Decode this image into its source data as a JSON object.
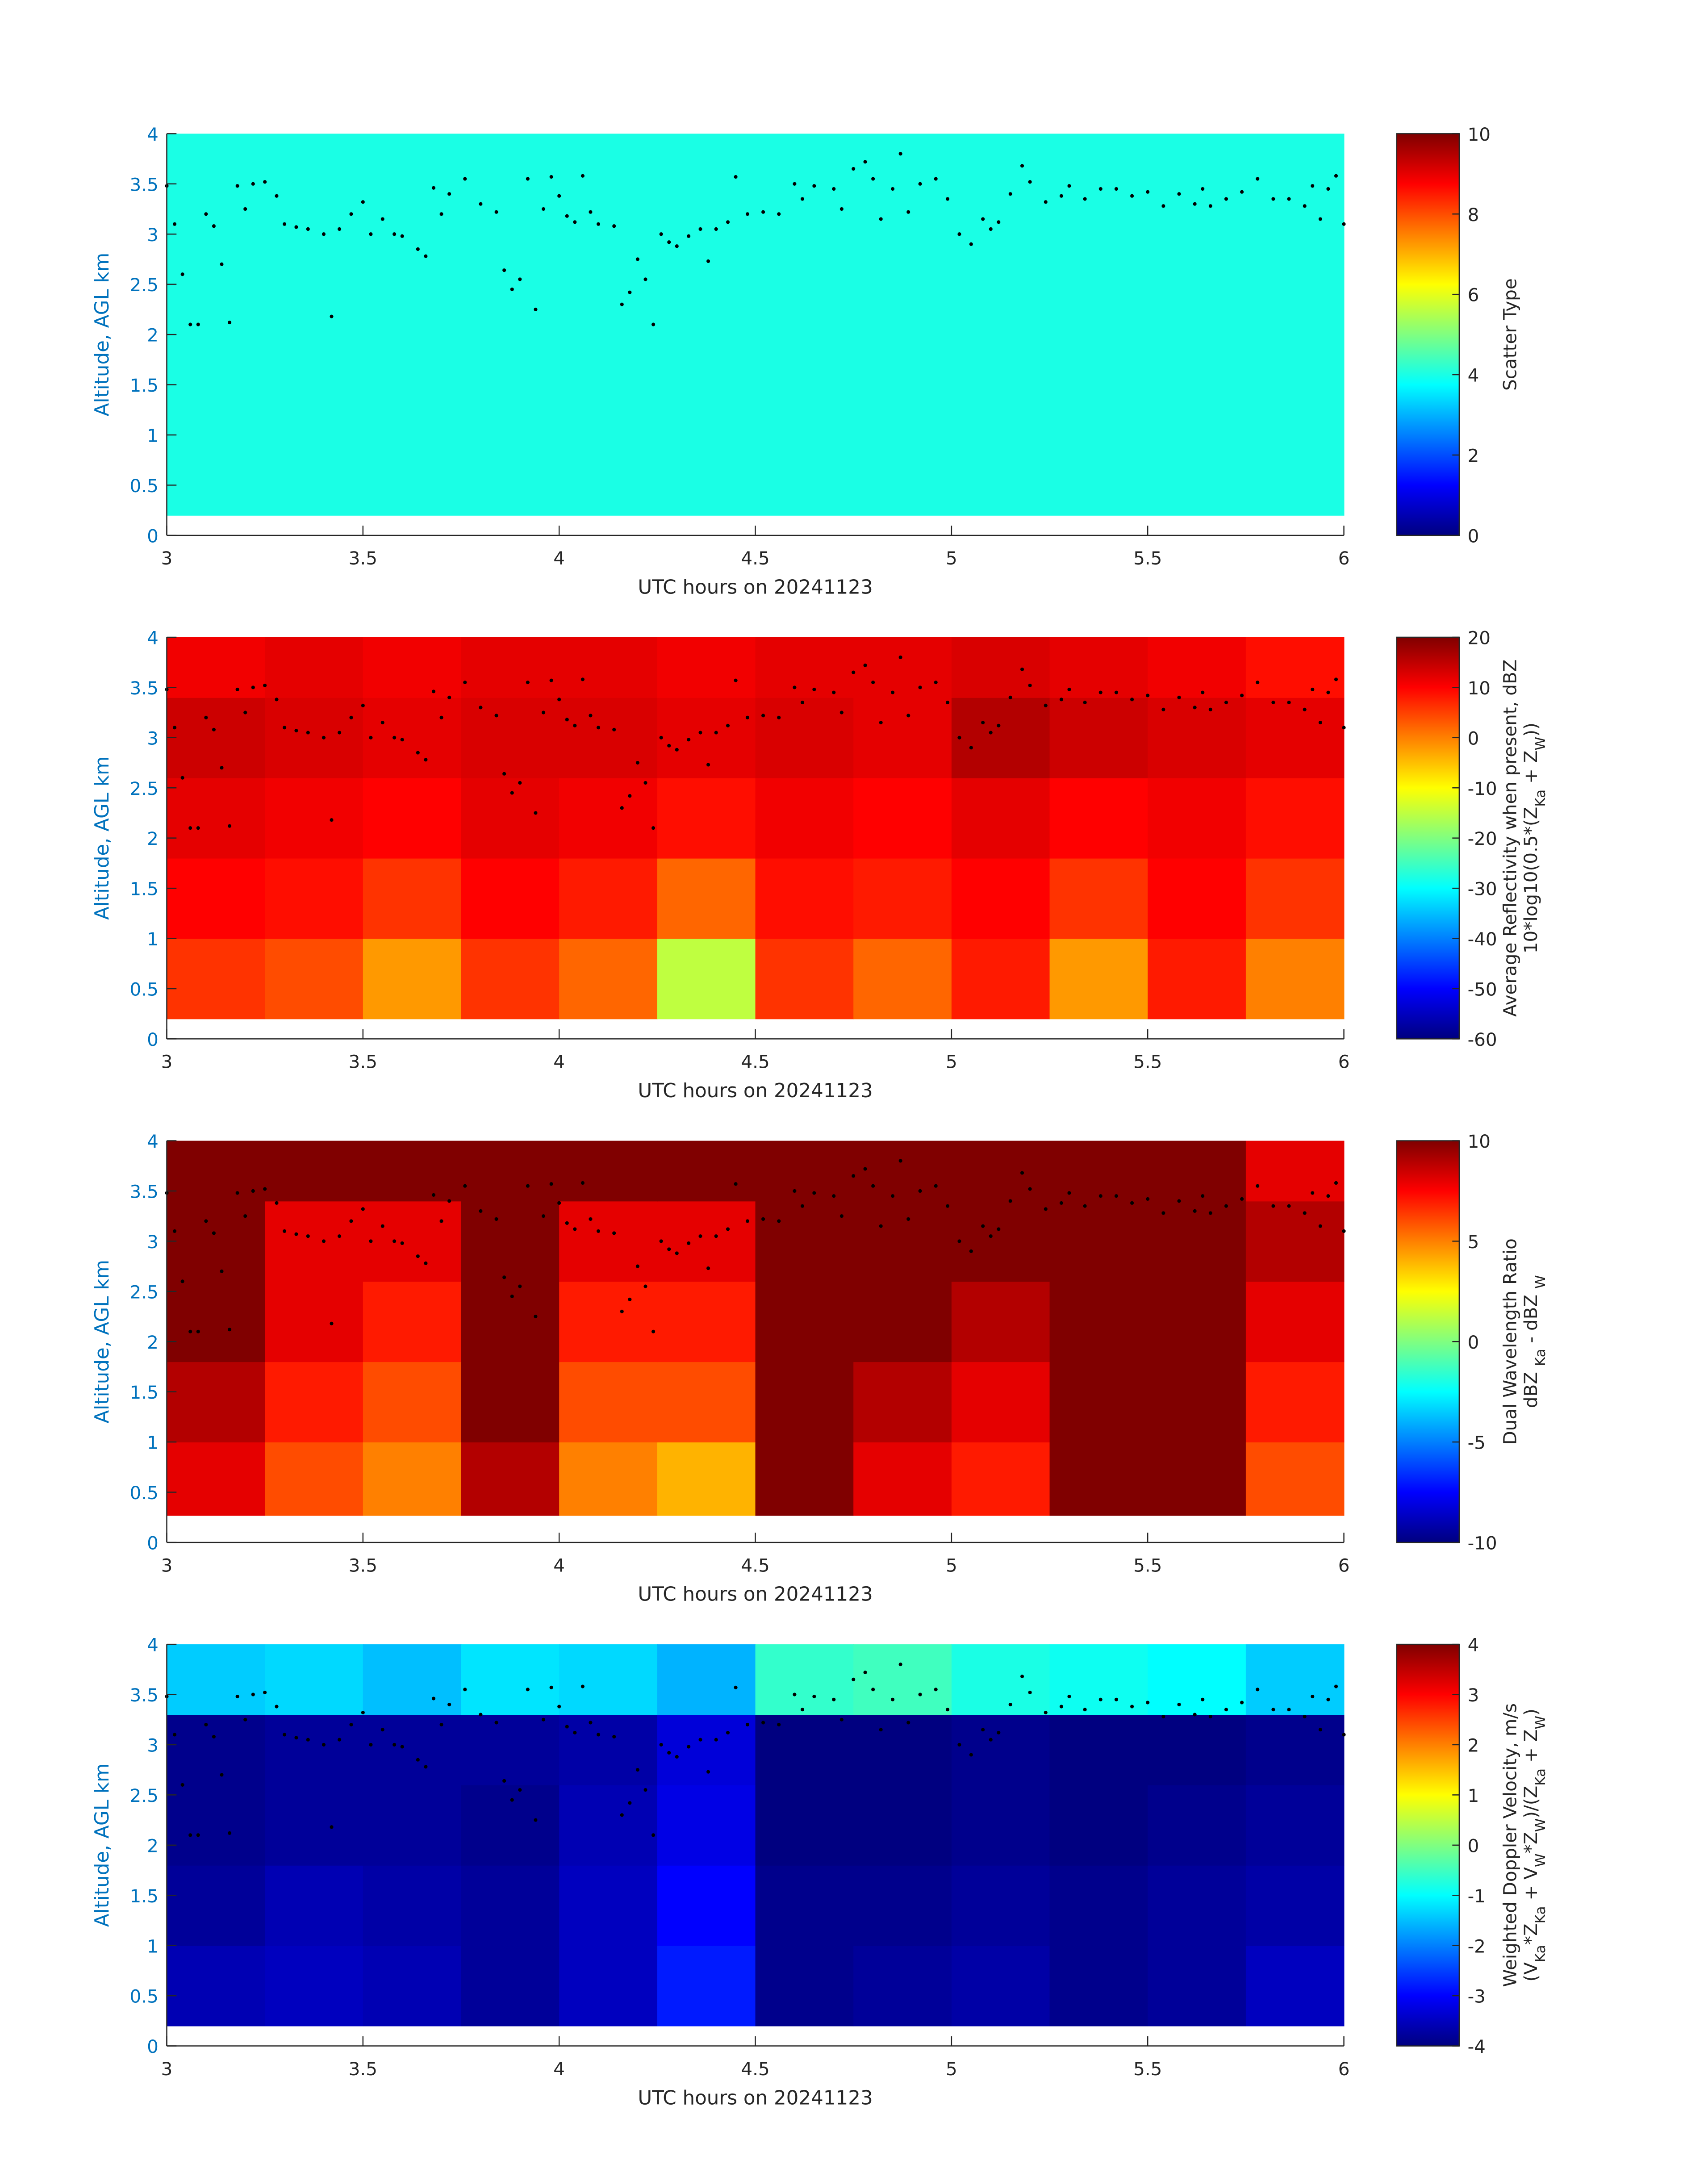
{
  "cloud_top": {
    "color": "#000000",
    "x": [
      3.0,
      3.02,
      3.04,
      3.06,
      3.08,
      3.1,
      3.12,
      3.14,
      3.16,
      3.18,
      3.2,
      3.22,
      3.25,
      3.28,
      3.3,
      3.33,
      3.36,
      3.4,
      3.42,
      3.44,
      3.47,
      3.5,
      3.52,
      3.55,
      3.58,
      3.6,
      3.64,
      3.66,
      3.68,
      3.7,
      3.72,
      3.76,
      3.8,
      3.84,
      3.86,
      3.88,
      3.9,
      3.92,
      3.94,
      3.96,
      3.98,
      4.0,
      4.02,
      4.04,
      4.06,
      4.08,
      4.1,
      4.14,
      4.16,
      4.18,
      4.2,
      4.22,
      4.24,
      4.26,
      4.28,
      4.3,
      4.33,
      4.36,
      4.38,
      4.4,
      4.43,
      4.45,
      4.48,
      4.52,
      4.56,
      4.6,
      4.62,
      4.65,
      4.7,
      4.72,
      4.75,
      4.78,
      4.8,
      4.82,
      4.85,
      4.87,
      4.89,
      4.92,
      4.96,
      4.99,
      5.02,
      5.05,
      5.08,
      5.1,
      5.12,
      5.15,
      5.18,
      5.2,
      5.24,
      5.28,
      5.3,
      5.34,
      5.38,
      5.42,
      5.46,
      5.5,
      5.54,
      5.58,
      5.62,
      5.64,
      5.66,
      5.7,
      5.74,
      5.78,
      5.82,
      5.86,
      5.9,
      5.92,
      5.94,
      5.96,
      5.98,
      6.0
    ],
    "y": [
      3.48,
      3.1,
      2.6,
      2.1,
      2.1,
      3.2,
      3.08,
      2.7,
      2.12,
      3.48,
      3.25,
      3.5,
      3.52,
      3.38,
      3.1,
      3.07,
      3.05,
      3.0,
      2.18,
      3.05,
      3.2,
      3.32,
      3.0,
      3.15,
      3.0,
      2.98,
      2.85,
      2.78,
      3.46,
      3.2,
      3.4,
      3.55,
      3.3,
      3.22,
      2.64,
      2.45,
      2.55,
      3.55,
      2.25,
      3.25,
      3.57,
      3.38,
      3.18,
      3.12,
      3.58,
      3.22,
      3.1,
      3.08,
      2.3,
      2.42,
      2.75,
      2.55,
      2.1,
      3.0,
      2.92,
      2.88,
      2.98,
      3.05,
      2.73,
      3.05,
      3.12,
      3.57,
      3.2,
      3.22,
      3.2,
      3.5,
      3.35,
      3.48,
      3.45,
      3.25,
      3.65,
      3.72,
      3.55,
      3.15,
      3.45,
      3.8,
      3.22,
      3.5,
      3.55,
      3.35,
      3.0,
      2.9,
      3.15,
      3.05,
      3.12,
      3.4,
      3.68,
      3.52,
      3.32,
      3.38,
      3.48,
      3.35,
      3.45,
      3.45,
      3.38,
      3.42,
      3.28,
      3.4,
      3.3,
      3.45,
      3.28,
      3.35,
      3.42,
      3.55,
      3.35,
      3.35,
      3.28,
      3.48,
      3.15,
      3.45,
      3.58,
      3.1
    ]
  },
  "chart_data": [
    {
      "type": "heatmap",
      "xlabel": "UTC hours on 20241123",
      "ylabel": "Altitude, AGL km",
      "xlim": [
        3,
        6
      ],
      "xticks": [
        3,
        3.5,
        4,
        4.5,
        5,
        5.5,
        6
      ],
      "ylim": [
        0,
        4
      ],
      "yticks": [
        0,
        0.5,
        1,
        1.5,
        2,
        2.5,
        3,
        3.5,
        4
      ],
      "colormap": "jet",
      "clim": [
        0,
        10
      ],
      "cticks": [
        0,
        2,
        4,
        6,
        8,
        10
      ],
      "colorbar_label": [
        [
          {
            "text": "Scatter Type"
          }
        ]
      ],
      "xbins": [
        3,
        6
      ],
      "ybins": [
        0.2,
        4
      ],
      "z": [
        [
          4
        ]
      ]
    },
    {
      "type": "heatmap",
      "xlabel": "UTC hours on 20241123",
      "ylabel": "Altitude, AGL km",
      "xlim": [
        3,
        6
      ],
      "xticks": [
        3,
        3.5,
        4,
        4.5,
        5,
        5.5,
        6
      ],
      "ylim": [
        0,
        4
      ],
      "yticks": [
        0,
        0.5,
        1,
        1.5,
        2,
        2.5,
        3,
        3.5,
        4
      ],
      "colormap": "jet",
      "clim": [
        -60,
        20
      ],
      "cticks": [
        -60,
        -50,
        -40,
        -30,
        -20,
        -10,
        0,
        10,
        20
      ],
      "colorbar_label": [
        [
          {
            "text": "Average Reflectivity when present, dBZ"
          }
        ],
        [
          {
            "text": "10*log10(0.5*(Z"
          },
          {
            "text": "Ka",
            "sub": true
          },
          {
            "text": " + Z"
          },
          {
            "text": "W",
            "sub": true
          },
          {
            "text": "))"
          }
        ]
      ],
      "xbins": [
        3,
        3.25,
        3.5,
        3.75,
        4,
        4.25,
        4.5,
        4.75,
        5,
        5.25,
        5.5,
        5.75,
        6
      ],
      "ybins": [
        0.2,
        1,
        1.8,
        2.6,
        3.4,
        4
      ],
      "z": [
        [
          6,
          4,
          -2,
          6,
          2,
          -15,
          6,
          2,
          8,
          -2,
          8,
          0
        ],
        [
          10,
          9,
          6,
          10,
          8,
          2,
          9,
          8,
          10,
          6,
          10,
          6
        ],
        [
          12,
          11,
          10,
          12,
          11,
          9,
          11,
          10,
          12,
          10,
          11,
          9
        ],
        [
          14,
          13,
          12,
          13,
          13,
          12,
          13,
          12,
          16,
          14,
          13,
          12
        ],
        [
          11,
          12,
          11,
          12,
          12,
          11,
          12,
          12,
          13,
          12,
          11,
          9
        ]
      ]
    },
    {
      "type": "heatmap",
      "xlabel": "UTC hours on 20241123",
      "ylabel": "Altitude, AGL km",
      "xlim": [
        3,
        6
      ],
      "xticks": [
        3,
        3.5,
        4,
        4.5,
        5,
        5.5,
        6
      ],
      "ylim": [
        0,
        4
      ],
      "yticks": [
        0,
        0.5,
        1,
        1.5,
        2,
        2.5,
        3,
        3.5,
        4
      ],
      "colormap": "jet",
      "clim": [
        -10,
        10
      ],
      "cticks": [
        -10,
        -5,
        0,
        5,
        10
      ],
      "colorbar_label": [
        [
          {
            "text": "Dual Wavelength Ratio"
          }
        ],
        [
          {
            "text": "dBZ "
          },
          {
            "text": "Ka",
            "sub": true
          },
          {
            "text": " - dBZ "
          },
          {
            "text": "W",
            "sub": true
          }
        ]
      ],
      "xbins": [
        3,
        3.25,
        3.5,
        3.75,
        4,
        4.25,
        4.5,
        4.75,
        5,
        5.25,
        5.5,
        5.75,
        6
      ],
      "ybins": [
        0.27,
        1,
        1.8,
        2.6,
        3.4,
        4
      ],
      "z": [
        [
          8,
          6,
          5,
          9,
          5,
          4,
          10,
          8,
          7,
          10,
          10,
          6
        ],
        [
          9,
          7,
          6,
          10,
          6,
          6,
          10,
          9,
          8,
          10,
          10,
          7
        ],
        [
          10,
          8,
          7,
          10,
          7,
          7,
          10,
          10,
          9,
          10,
          10,
          8
        ],
        [
          10,
          8,
          8,
          10,
          8,
          8,
          10,
          10,
          10,
          10,
          10,
          9
        ],
        [
          10,
          10,
          10,
          10,
          10,
          10,
          10,
          10,
          10,
          10,
          10,
          8
        ]
      ]
    },
    {
      "type": "heatmap",
      "xlabel": "UTC hours on 20241123",
      "ylabel": "Altitude, AGL km",
      "xlim": [
        3,
        6
      ],
      "xticks": [
        3,
        3.5,
        4,
        4.5,
        5,
        5.5,
        6
      ],
      "ylim": [
        0,
        4
      ],
      "yticks": [
        0,
        0.5,
        1,
        1.5,
        2,
        2.5,
        3,
        3.5,
        4
      ],
      "colormap": "jet",
      "clim": [
        -4,
        4
      ],
      "cticks": [
        -4,
        -3,
        -2,
        -1,
        0,
        1,
        2,
        3,
        4
      ],
      "colorbar_label": [
        [
          {
            "text": "Weighted Doppler Velocity, m/s"
          }
        ],
        [
          {
            "text": "(V"
          },
          {
            "text": "Ka",
            "sub": true
          },
          {
            "text": "*Z"
          },
          {
            "text": "Ka",
            "sub": true
          },
          {
            "text": " + V"
          },
          {
            "text": "W",
            "sub": true
          },
          {
            "text": "*Z"
          },
          {
            "text": "W",
            "sub": true
          },
          {
            "text": ")/(Z"
          },
          {
            "text": "Ka",
            "sub": true
          },
          {
            "text": " + Z"
          },
          {
            "text": "W",
            "sub": true
          },
          {
            "text": ")"
          }
        ]
      ],
      "xbins": [
        3,
        3.25,
        3.5,
        3.75,
        4,
        4.25,
        4.5,
        4.75,
        5,
        5.25,
        5.5,
        5.75,
        6
      ],
      "ybins": [
        0.2,
        1,
        1.8,
        2.6,
        3.3,
        4
      ],
      "z": [
        [
          -3.6,
          -3.5,
          -3.6,
          -3.8,
          -3.5,
          -2.8,
          -3.9,
          -3.8,
          -3.7,
          -3.9,
          -3.8,
          -3.5
        ],
        [
          -3.8,
          -3.6,
          -3.7,
          -3.8,
          -3.5,
          -3.0,
          -3.9,
          -3.9,
          -3.8,
          -3.9,
          -3.8,
          -3.7
        ],
        [
          -3.9,
          -3.8,
          -3.8,
          -3.9,
          -3.6,
          -3.2,
          -4,
          -4,
          -3.9,
          -4,
          -3.9,
          -3.8
        ],
        [
          -3.9,
          -3.8,
          -3.8,
          -3.8,
          -3.7,
          -3.3,
          -4,
          -4,
          -3.9,
          -4,
          -4,
          -3.9
        ],
        [
          -1.4,
          -1.3,
          -1.5,
          -1.2,
          -1.3,
          -1.6,
          -0.6,
          -0.5,
          -0.8,
          -0.9,
          -1.0,
          -1.4
        ]
      ]
    }
  ]
}
